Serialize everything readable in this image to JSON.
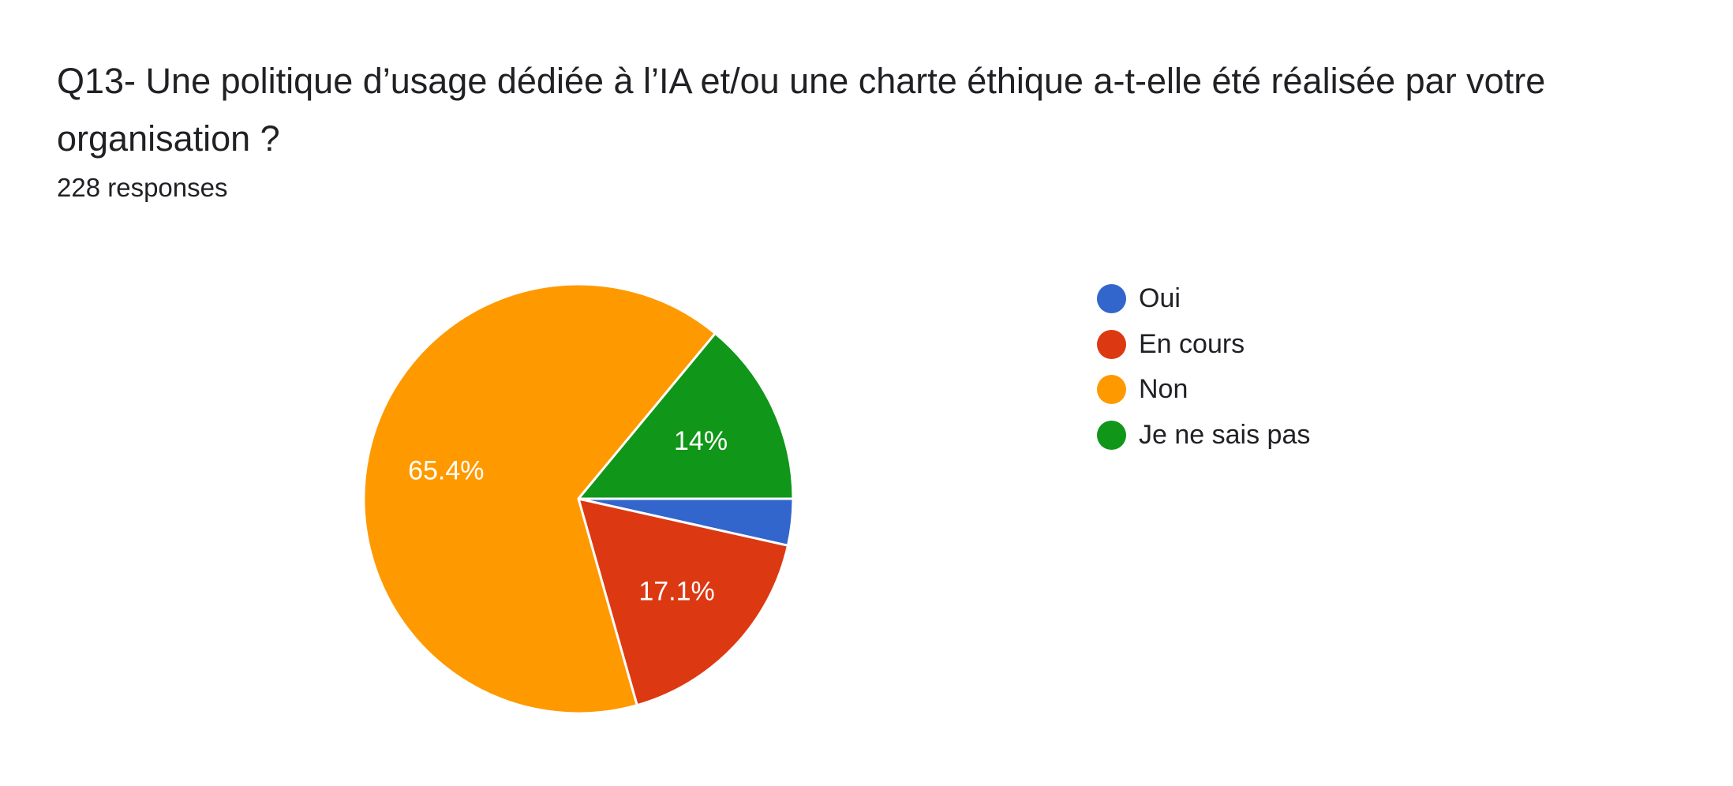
{
  "chart_data": {
    "type": "pie",
    "title": "Q13- Une politique d’usage dédiée à l’IA et/ou une charte éthique a-t-elle été réalisée par votre organisation ?",
    "subtitle": "228 responses",
    "legend_position": "right",
    "slices": [
      {
        "label": "Oui",
        "value": 3.5,
        "display_label": "",
        "color": "#3366cc"
      },
      {
        "label": "En cours",
        "value": 17.1,
        "display_label": "17.1%",
        "color": "#dc3912"
      },
      {
        "label": "Non",
        "value": 65.4,
        "display_label": "65.4%",
        "color": "#ff9900"
      },
      {
        "label": "Je ne sais pas",
        "value": 14.0,
        "display_label": "14%",
        "color": "#109618"
      }
    ]
  }
}
